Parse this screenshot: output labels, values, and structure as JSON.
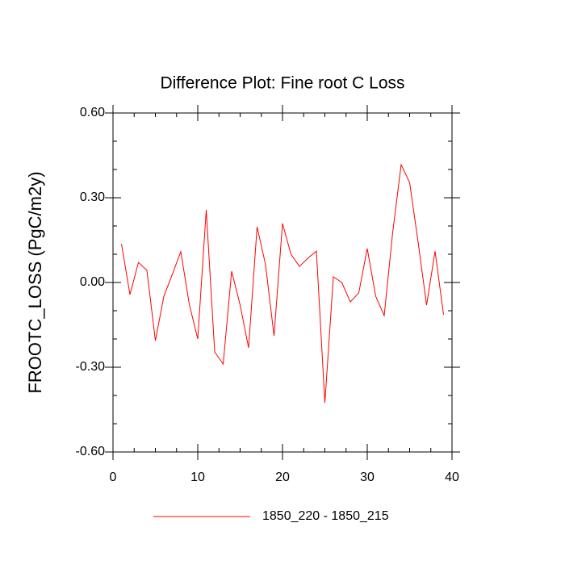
{
  "chart_data": {
    "type": "line",
    "title": "Difference Plot: Fine root C Loss",
    "y_label": "FROOTC_LOSS  (PgC/m2y)",
    "x": [
      1,
      2,
      3,
      4,
      5,
      6,
      7,
      8,
      9,
      10,
      11,
      12,
      13,
      14,
      15,
      16,
      17,
      18,
      19,
      20,
      21,
      22,
      23,
      24,
      25,
      26,
      27,
      28,
      29,
      30,
      31,
      32,
      33,
      34,
      35,
      36,
      37,
      38,
      39
    ],
    "series": [
      {
        "name": "1850_220 - 1850_215",
        "color": "#ff0000",
        "values": [
          0.137,
          -0.043,
          0.071,
          0.043,
          -0.206,
          -0.049,
          0.029,
          0.109,
          -0.077,
          -0.2,
          0.257,
          -0.246,
          -0.289,
          0.04,
          -0.08,
          -0.231,
          0.197,
          0.063,
          -0.189,
          0.209,
          0.1,
          0.057,
          0.086,
          0.111,
          -0.426,
          0.02,
          0.0,
          -0.069,
          -0.037,
          0.12,
          -0.049,
          -0.117,
          0.177,
          0.417,
          0.354,
          0.143,
          -0.08,
          0.111,
          -0.114
        ]
      }
    ],
    "xlim": [
      0,
      40
    ],
    "ylim": [
      -0.6,
      0.6
    ],
    "xticks": [
      0,
      10,
      20,
      30,
      40
    ],
    "yticks": [
      {
        "value": 0.6,
        "label": "0.60"
      },
      {
        "value": 0.3,
        "label": "0.30"
      },
      {
        "value": 0,
        "label": "0.00"
      },
      {
        "value": -0.3,
        "label": "-0.30"
      },
      {
        "value": -0.6,
        "label": "-0.60"
      }
    ],
    "xminorticks": [
      2.5,
      5,
      7.5,
      12.5,
      15,
      17.5,
      22.5,
      25,
      27.5,
      32.5,
      35,
      37.5
    ],
    "yminorticks": [
      0.5,
      0.4,
      0.2,
      0.1,
      -0.1,
      -0.2,
      -0.4,
      -0.5
    ],
    "legend": "bottom"
  }
}
